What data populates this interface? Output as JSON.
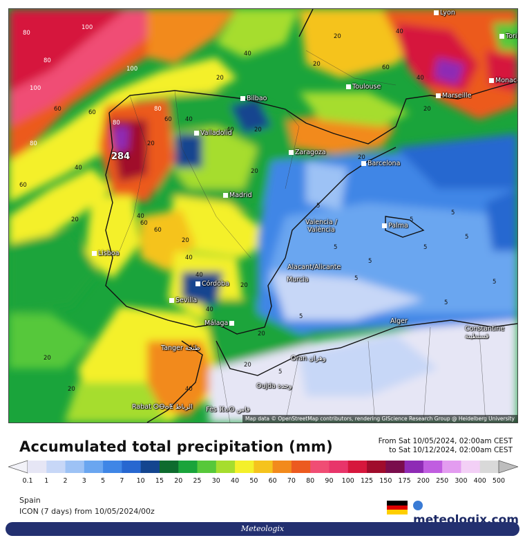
{
  "map": {
    "attribution": "Map data © OpenStreetMap contributors, rendering GIScience Research Group @ Heidelberg University",
    "cities": [
      {
        "name": "Lyon"
      },
      {
        "name": "Torino"
      },
      {
        "name": "Marseille"
      },
      {
        "name": "Monaco"
      },
      {
        "name": "Toulouse"
      },
      {
        "name": "Bilbao"
      },
      {
        "name": "Valladolid"
      },
      {
        "name": "Zaragoza"
      },
      {
        "name": "Barcelona"
      },
      {
        "name": "Madrid"
      },
      {
        "name": "Valencia / València"
      },
      {
        "name": "Palma"
      },
      {
        "name": "Lisboa"
      },
      {
        "name": "Alacant/Alicante"
      },
      {
        "name": "Murcia"
      },
      {
        "name": "Córdoba"
      },
      {
        "name": "Sevilla"
      },
      {
        "name": "Málaga"
      },
      {
        "name": "Alger"
      },
      {
        "name": "Constantine قسنطينة"
      },
      {
        "name": "Tanger طنجة"
      },
      {
        "name": "Oran وهران"
      },
      {
        "name": "Oujda وجدة"
      },
      {
        "name": "Rabat ⵔⴱⴰⵟ الرباط"
      },
      {
        "name": "Fès ⴼⴰⵙ فاس"
      }
    ],
    "max_value": "284",
    "values": [
      "80",
      "100",
      "80",
      "100",
      "60",
      "80",
      "40",
      "60",
      "100",
      "60",
      "80",
      "40",
      "20",
      "60",
      "20",
      "80",
      "60",
      "40",
      "20",
      "40",
      "20",
      "20",
      "40",
      "40",
      "60",
      "20",
      "40",
      "20",
      "20",
      "5",
      "5",
      "5",
      "5",
      "5",
      "5",
      "5",
      "20",
      "40",
      "20",
      "40",
      "60",
      "40",
      "20",
      "20",
      "5",
      "5",
      "5",
      "20",
      "40",
      "20",
      "5",
      "5",
      "40",
      "20"
    ]
  },
  "title": "Accumulated total precipitation (mm)",
  "period": {
    "from": "From Sat 10/05/2024, 02:00am CEST",
    "to": "to Sat 10/12/2024, 02:00am CEST"
  },
  "legend": {
    "ticks": [
      "0.1",
      "1",
      "2",
      "3",
      "5",
      "7",
      "10",
      "15",
      "20",
      "25",
      "30",
      "40",
      "50",
      "60",
      "70",
      "80",
      "90",
      "100",
      "125",
      "150",
      "175",
      "200",
      "250",
      "300",
      "400",
      "500"
    ],
    "colors": [
      "#e6e6f5",
      "#c7d7f7",
      "#9dc2f5",
      "#6aa6f0",
      "#3f86e6",
      "#2767d0",
      "#14458f",
      "#0e6b2e",
      "#1aa43b",
      "#57c83a",
      "#a6dd2e",
      "#f4f02a",
      "#f5c31d",
      "#f28a1c",
      "#ec5a1f",
      "#f04d74",
      "#e8356a",
      "#d6173c",
      "#a00c2c",
      "#7a0d4c",
      "#8e2bb5",
      "#c05de0",
      "#e39cf0",
      "#f3d0f6",
      "#d9d9d9"
    ]
  },
  "footer_info": {
    "region": "Spain",
    "model": "ICON (7 days) from 10/05/2024/00z"
  },
  "brand": "meteologix.com",
  "footer": "Meteologix"
}
